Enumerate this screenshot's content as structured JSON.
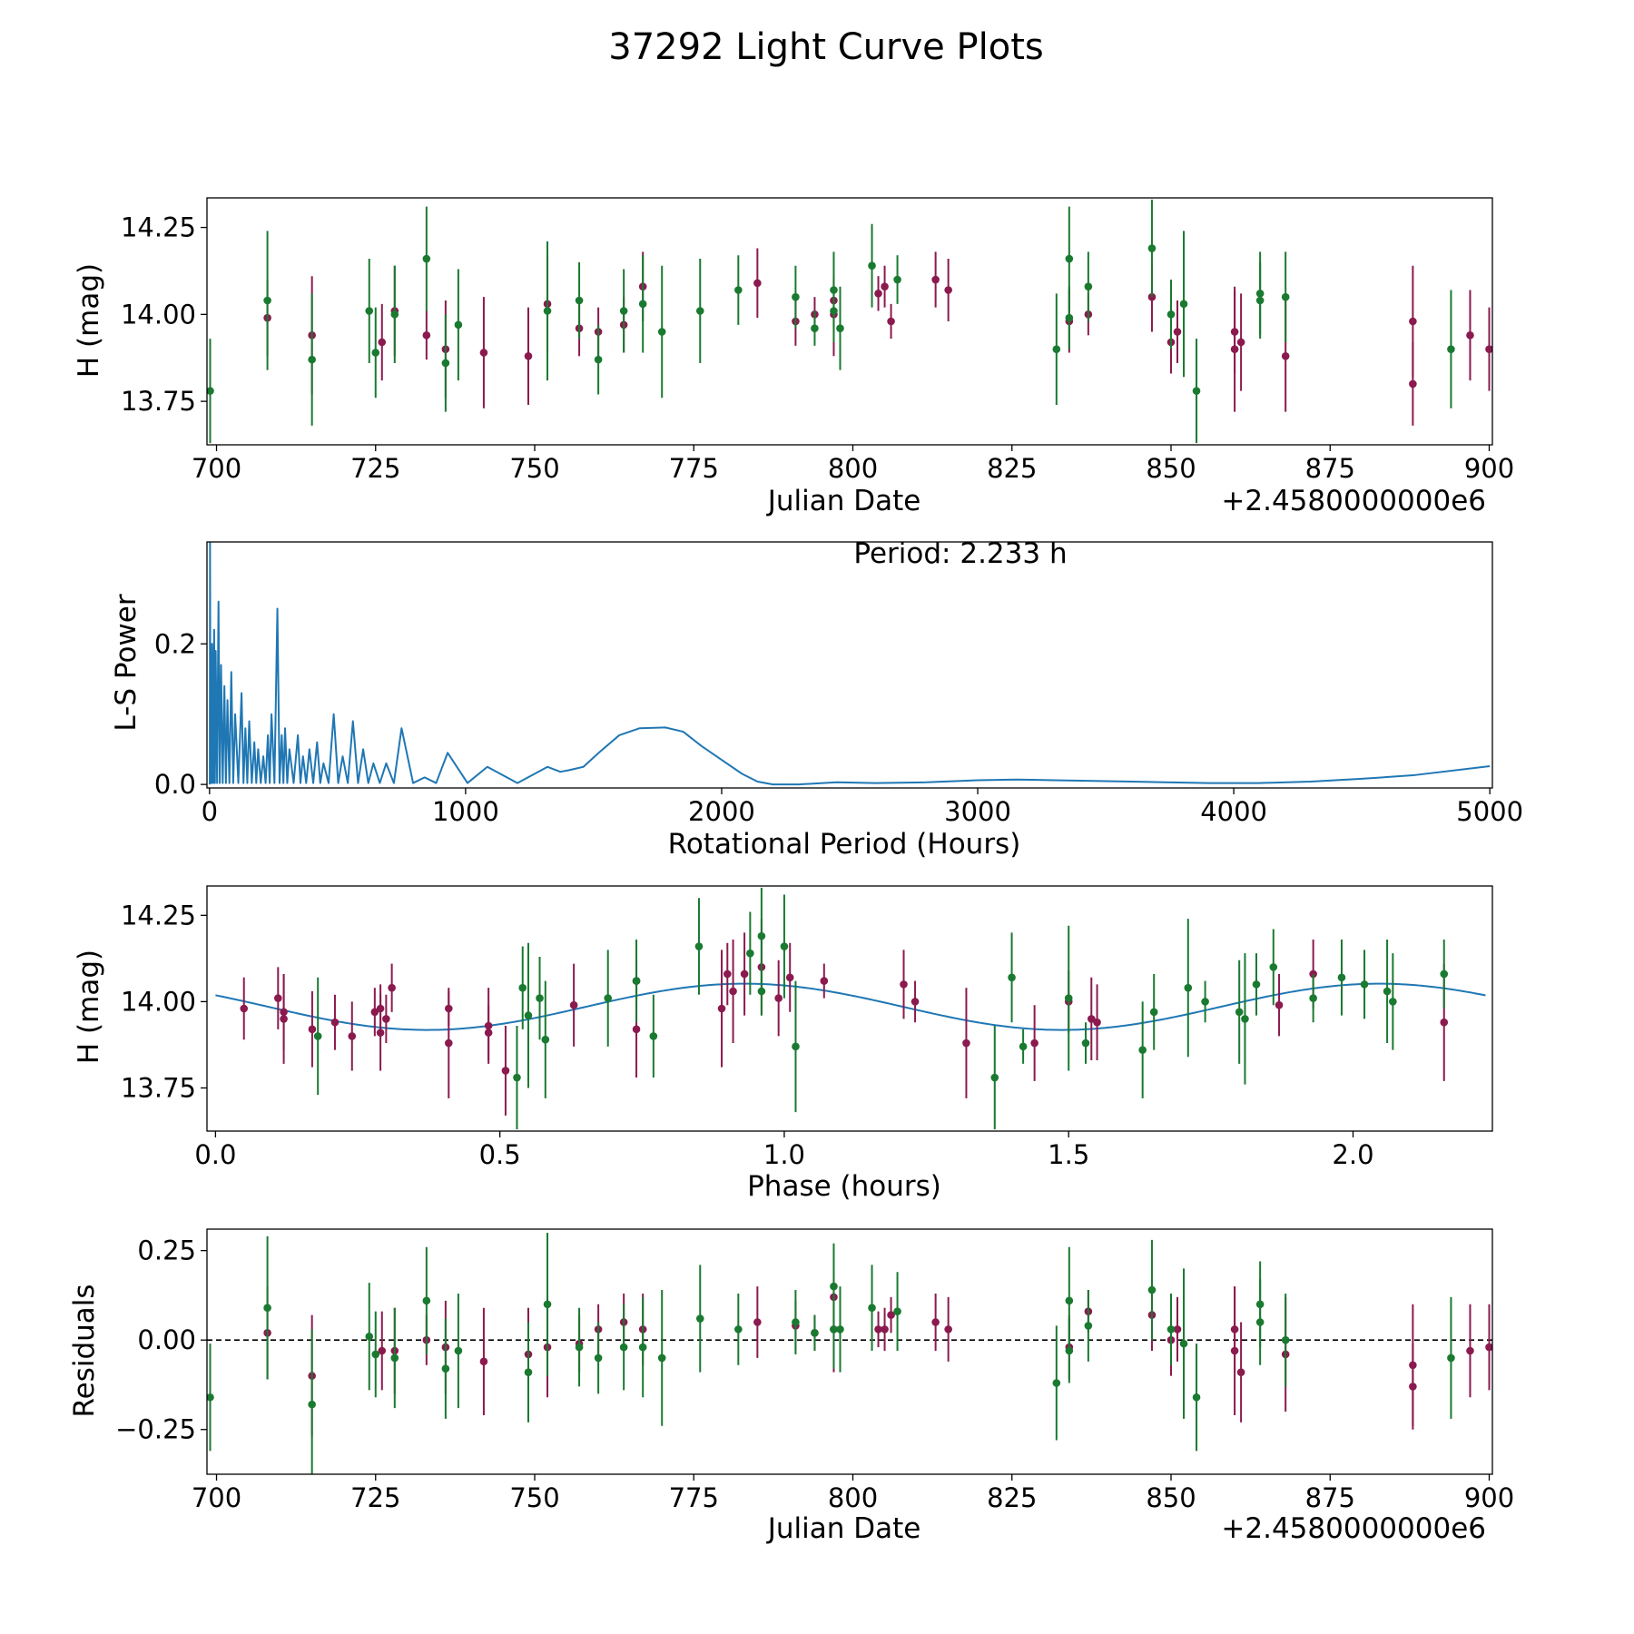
{
  "figure_title": "37292 Light Curve Plots",
  "colors": {
    "magenta": "#8b1a4f",
    "green": "#197a30",
    "line": "#1f77b4",
    "axis": "#000000"
  },
  "chart_data": [
    {
      "type": "scatter",
      "name": "light-curve",
      "xlabel": "Julian Date",
      "ylabel": "H (mag)",
      "offset_label": "+2.4580000000e6",
      "xlim": [
        698.5,
        900.5
      ],
      "ylim": [
        13.625,
        14.335
      ],
      "xticks": [
        "700",
        "725",
        "750",
        "775",
        "800",
        "825",
        "850",
        "875",
        "900"
      ],
      "yticks": [
        "13.75",
        "14.00",
        "14.25"
      ],
      "series": [
        {
          "name": "magenta",
          "x": [
            708,
            715,
            726,
            728,
            733,
            736,
            742,
            749,
            752,
            757,
            760,
            764,
            767,
            785,
            791,
            794,
            797,
            797,
            804,
            805,
            806,
            813,
            815,
            834,
            837,
            847,
            850,
            851,
            860,
            860,
            861,
            868,
            888,
            888,
            897,
            900
          ],
          "y": [
            13.99,
            13.94,
            13.92,
            14.01,
            13.94,
            13.9,
            13.89,
            13.88,
            14.03,
            13.96,
            13.95,
            13.97,
            14.08,
            14.09,
            13.98,
            14.0,
            14.0,
            14.04,
            14.06,
            14.08,
            13.98,
            14.1,
            14.07,
            13.98,
            14.0,
            14.05,
            13.92,
            13.95,
            13.9,
            13.95,
            13.92,
            13.88,
            13.98,
            13.8,
            13.94,
            13.9
          ],
          "err": [
            0.11,
            0.17,
            0.11,
            0.13,
            0.07,
            0.14,
            0.16,
            0.14,
            0.14,
            0.08,
            0.07,
            0.08,
            0.1,
            0.1,
            0.07,
            0.05,
            0.12,
            0.07,
            0.05,
            0.06,
            0.05,
            0.08,
            0.09,
            0.09,
            0.06,
            0.1,
            0.09,
            0.09,
            0.18,
            0.12,
            0.14,
            0.16,
            0.16,
            0.12,
            0.13,
            0.12
          ]
        },
        {
          "name": "green",
          "x": [
            699,
            708,
            715,
            724,
            725,
            728,
            733,
            736,
            738,
            752,
            757,
            760,
            764,
            767,
            770,
            776,
            782,
            791,
            794,
            797,
            797,
            798,
            803,
            807,
            832,
            834,
            834,
            837,
            847,
            850,
            852,
            854,
            864,
            864,
            868,
            894
          ],
          "y": [
            13.78,
            14.04,
            13.87,
            14.01,
            13.89,
            14.0,
            14.16,
            13.86,
            13.97,
            14.01,
            14.04,
            13.87,
            14.01,
            14.03,
            13.95,
            14.01,
            14.07,
            14.05,
            13.96,
            14.01,
            14.07,
            13.96,
            14.14,
            14.1,
            13.9,
            14.16,
            13.99,
            14.08,
            14.19,
            14.0,
            14.03,
            13.78,
            14.06,
            14.04,
            14.05,
            13.9
          ],
          "err": [
            0.15,
            0.2,
            0.19,
            0.15,
            0.13,
            0.14,
            0.15,
            0.14,
            0.16,
            0.2,
            0.11,
            0.1,
            0.12,
            0.14,
            0.19,
            0.15,
            0.1,
            0.09,
            0.05,
            0.09,
            0.11,
            0.12,
            0.12,
            0.07,
            0.16,
            0.15,
            0.09,
            0.1,
            0.14,
            0.1,
            0.21,
            0.15,
            0.12,
            0.11,
            0.13,
            0.17
          ]
        }
      ]
    },
    {
      "type": "line",
      "name": "periodogram",
      "xlabel": "Rotational Period (Hours)",
      "ylabel": "L-S Power",
      "annotation": "Period: 2.233 h",
      "xlim": [
        -10,
        5010
      ],
      "ylim": [
        -0.005,
        0.345
      ],
      "xticks": [
        "0",
        "1000",
        "2000",
        "3000",
        "4000",
        "5000"
      ],
      "yticks": [
        "0.0",
        "0.2"
      ],
      "peaks": [
        [
          2,
          0.35
        ],
        [
          5,
          0.18
        ],
        [
          10,
          0.2
        ],
        [
          18,
          0.22
        ],
        [
          24,
          0.19
        ],
        [
          35,
          0.26
        ],
        [
          45,
          0.17
        ],
        [
          58,
          0.14
        ],
        [
          70,
          0.12
        ],
        [
          85,
          0.16
        ],
        [
          100,
          0.1
        ],
        [
          125,
          0.13
        ],
        [
          140,
          0.08
        ],
        [
          155,
          0.09
        ],
        [
          175,
          0.06
        ],
        [
          190,
          0.05
        ],
        [
          210,
          0.04
        ],
        [
          228,
          0.07
        ],
        [
          242,
          0.1
        ],
        [
          265,
          0.25
        ],
        [
          282,
          0.07
        ],
        [
          295,
          0.08
        ],
        [
          312,
          0.05
        ],
        [
          345,
          0.07
        ],
        [
          365,
          0.04
        ],
        [
          390,
          0.05
        ],
        [
          420,
          0.06
        ],
        [
          445,
          0.03
        ],
        [
          485,
          0.1
        ],
        [
          520,
          0.04
        ],
        [
          560,
          0.09
        ],
        [
          600,
          0.05
        ],
        [
          640,
          0.03
        ],
        [
          690,
          0.03
        ],
        [
          750,
          0.08
        ],
        [
          840,
          0.01
        ],
        [
          930,
          0.045
        ],
        [
          1085,
          0.025
        ],
        [
          1320,
          0.025
        ]
      ],
      "curve": [
        [
          1400,
          0.02
        ],
        [
          1460,
          0.025
        ],
        [
          1520,
          0.045
        ],
        [
          1600,
          0.07
        ],
        [
          1680,
          0.08
        ],
        [
          1780,
          0.081
        ],
        [
          1850,
          0.075
        ],
        [
          1920,
          0.055
        ],
        [
          2000,
          0.035
        ],
        [
          2080,
          0.015
        ],
        [
          2140,
          0.004
        ],
        [
          2200,
          0.0
        ],
        [
          2300,
          0.0
        ],
        [
          2450,
          0.003
        ],
        [
          2600,
          0.002
        ],
        [
          2800,
          0.003
        ],
        [
          3000,
          0.006
        ],
        [
          3150,
          0.007
        ],
        [
          3300,
          0.006
        ],
        [
          3600,
          0.004
        ],
        [
          3900,
          0.002
        ],
        [
          4100,
          0.002
        ],
        [
          4300,
          0.004
        ],
        [
          4500,
          0.008
        ],
        [
          4700,
          0.013
        ],
        [
          5000,
          0.026
        ]
      ]
    },
    {
      "type": "scatter",
      "name": "phased",
      "xlabel": "Phase (hours)",
      "ylabel": "H (mag)",
      "xlim": [
        -0.015,
        2.245
      ],
      "ylim": [
        13.625,
        14.335
      ],
      "xticks": [
        "0.0",
        "0.5",
        "1.0",
        "1.5",
        "2.0"
      ],
      "yticks": [
        "13.75",
        "14.00",
        "14.25"
      ],
      "model": {
        "mean": 13.985,
        "amplitude": 0.067,
        "period": 1.116,
        "phase_of_max": 0.93,
        "x_end": 2.233
      },
      "series": [
        {
          "name": "magenta",
          "x": [
            0.05,
            0.11,
            0.12,
            0.12,
            0.17,
            0.21,
            0.24,
            0.28,
            0.29,
            0.29,
            0.3,
            0.31,
            0.41,
            0.41,
            0.48,
            0.48,
            0.51,
            0.63,
            0.74,
            0.74,
            0.89,
            0.9,
            0.91,
            0.93,
            0.96,
            0.99,
            1.01,
            1.07,
            1.21,
            1.23,
            1.32,
            1.44,
            1.5,
            1.54,
            1.55,
            1.87,
            1.93,
            2.16
          ],
          "y": [
            13.98,
            14.01,
            13.97,
            13.95,
            13.92,
            13.94,
            13.9,
            13.97,
            13.91,
            13.98,
            13.95,
            14.04,
            13.88,
            13.98,
            13.91,
            13.93,
            13.8,
            13.99,
            13.92,
            14.06,
            13.98,
            14.08,
            14.03,
            14.08,
            14.1,
            14.01,
            14.07,
            14.06,
            14.05,
            14.0,
            13.88,
            13.88,
            14.0,
            13.95,
            13.94,
            13.99,
            14.08,
            13.94
          ],
          "err": [
            0.09,
            0.09,
            0.11,
            0.13,
            0.11,
            0.08,
            0.1,
            0.07,
            0.11,
            0.07,
            0.07,
            0.07,
            0.16,
            0.05,
            0.08,
            0.11,
            0.13,
            0.12,
            0.14,
            0.06,
            0.17,
            0.09,
            0.15,
            0.12,
            0.14,
            0.11,
            0.1,
            0.05,
            0.1,
            0.06,
            0.16,
            0.11,
            0.09,
            0.12,
            0.11,
            0.09,
            0.1,
            0.17
          ]
        },
        {
          "name": "green",
          "x": [
            0.18,
            0.53,
            0.54,
            0.55,
            0.57,
            0.58,
            0.69,
            0.74,
            0.77,
            0.85,
            0.94,
            0.96,
            0.96,
            1.0,
            1.02,
            1.37,
            1.4,
            1.42,
            1.5,
            1.53,
            1.63,
            1.65,
            1.71,
            1.74,
            1.8,
            1.81,
            1.83,
            1.86,
            1.93,
            1.98,
            2.02,
            2.06,
            2.07,
            2.16
          ],
          "y": [
            13.9,
            13.78,
            14.04,
            13.96,
            14.01,
            13.89,
            14.01,
            14.06,
            13.9,
            14.16,
            14.14,
            14.19,
            14.03,
            14.16,
            13.87,
            13.78,
            14.07,
            13.87,
            14.01,
            13.88,
            13.86,
            13.97,
            14.04,
            14.0,
            13.97,
            13.95,
            14.05,
            14.1,
            14.01,
            14.07,
            14.05,
            14.03,
            14.0,
            14.08
          ],
          "err": [
            0.17,
            0.15,
            0.12,
            0.21,
            0.12,
            0.17,
            0.14,
            0.12,
            0.12,
            0.14,
            0.12,
            0.14,
            0.07,
            0.15,
            0.19,
            0.15,
            0.13,
            0.05,
            0.21,
            0.06,
            0.14,
            0.11,
            0.2,
            0.06,
            0.15,
            0.19,
            0.09,
            0.11,
            0.07,
            0.11,
            0.1,
            0.15,
            0.14,
            0.1
          ]
        }
      ]
    },
    {
      "type": "scatter",
      "name": "residuals",
      "xlabel": "Julian Date",
      "ylabel": "Residuals",
      "offset_label": "+2.4580000000e6",
      "xlim": [
        698.5,
        900.5
      ],
      "ylim": [
        -0.375,
        0.31
      ],
      "xticks": [
        "700",
        "725",
        "750",
        "775",
        "800",
        "825",
        "850",
        "875",
        "900"
      ],
      "yticks": [
        "−0.25",
        "0.00",
        "0.25"
      ],
      "zero_line": true,
      "series": [
        {
          "name": "magenta",
          "x": [
            708,
            715,
            726,
            728,
            733,
            736,
            742,
            749,
            752,
            757,
            760,
            764,
            767,
            785,
            791,
            794,
            797,
            797,
            804,
            805,
            806,
            813,
            815,
            834,
            837,
            847,
            850,
            851,
            860,
            860,
            861,
            868,
            888,
            888,
            897,
            900
          ],
          "y": [
            0.02,
            -0.1,
            -0.03,
            -0.03,
            0.0,
            -0.02,
            -0.06,
            -0.04,
            -0.02,
            -0.01,
            0.03,
            0.05,
            0.03,
            0.05,
            0.04,
            0.02,
            0.03,
            0.12,
            0.03,
            0.03,
            0.07,
            0.05,
            0.03,
            -0.02,
            0.08,
            0.07,
            0.0,
            0.03,
            -0.03,
            0.03,
            -0.09,
            -0.04,
            -0.07,
            -0.13,
            -0.03,
            -0.02
          ],
          "err": [
            0.13,
            0.17,
            0.11,
            0.12,
            0.07,
            0.13,
            0.15,
            0.13,
            0.14,
            0.08,
            0.07,
            0.08,
            0.1,
            0.1,
            0.07,
            0.05,
            0.12,
            0.07,
            0.05,
            0.06,
            0.05,
            0.08,
            0.09,
            0.09,
            0.06,
            0.1,
            0.1,
            0.09,
            0.18,
            0.12,
            0.14,
            0.16,
            0.17,
            0.12,
            0.13,
            0.12
          ]
        },
        {
          "name": "green",
          "x": [
            699,
            708,
            715,
            724,
            725,
            728,
            733,
            736,
            738,
            749,
            752,
            757,
            760,
            764,
            767,
            770,
            776,
            782,
            791,
            794,
            797,
            797,
            798,
            803,
            807,
            832,
            834,
            834,
            837,
            847,
            850,
            852,
            854,
            864,
            864,
            868,
            894
          ],
          "y": [
            -0.16,
            0.09,
            -0.18,
            0.01,
            -0.04,
            -0.05,
            0.11,
            -0.08,
            -0.03,
            -0.09,
            0.1,
            -0.02,
            -0.05,
            -0.02,
            -0.02,
            -0.05,
            0.06,
            0.03,
            0.05,
            0.02,
            0.15,
            0.03,
            0.03,
            0.09,
            0.08,
            -0.12,
            0.11,
            -0.03,
            0.04,
            0.14,
            0.03,
            -0.01,
            -0.16,
            0.05,
            0.1,
            0.0,
            -0.05
          ],
          "err": [
            0.15,
            0.2,
            0.21,
            0.15,
            0.12,
            0.14,
            0.15,
            0.14,
            0.16,
            0.14,
            0.2,
            0.11,
            0.1,
            0.12,
            0.14,
            0.19,
            0.15,
            0.1,
            0.09,
            0.05,
            0.12,
            0.11,
            0.12,
            0.12,
            0.11,
            0.16,
            0.15,
            0.09,
            0.1,
            0.14,
            0.1,
            0.21,
            0.15,
            0.12,
            0.12,
            0.13,
            0.17
          ]
        }
      ]
    }
  ]
}
